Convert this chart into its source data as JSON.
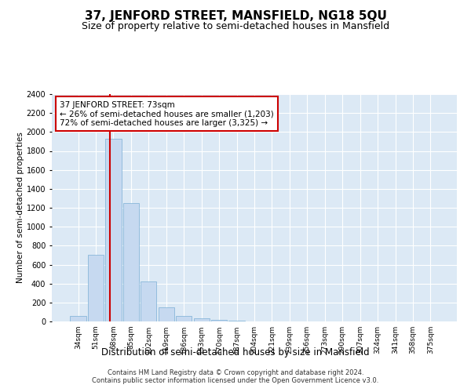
{
  "title_line1": "37, JENFORD STREET, MANSFIELD, NG18 5QU",
  "title_line2": "Size of property relative to semi-detached houses in Mansfield",
  "xlabel": "Distribution of semi-detached houses by size in Mansfield",
  "ylabel": "Number of semi-detached properties",
  "categories": [
    "34sqm",
    "51sqm",
    "68sqm",
    "85sqm",
    "102sqm",
    "119sqm",
    "136sqm",
    "153sqm",
    "170sqm",
    "187sqm",
    "204sqm",
    "221sqm",
    "239sqm",
    "256sqm",
    "273sqm",
    "290sqm",
    "307sqm",
    "324sqm",
    "341sqm",
    "358sqm",
    "375sqm"
  ],
  "values": [
    60,
    700,
    1930,
    1250,
    420,
    145,
    55,
    35,
    20,
    10,
    3,
    1,
    0,
    0,
    0,
    0,
    0,
    0,
    0,
    0,
    0
  ],
  "bar_color": "#c6d9f0",
  "bar_edge_color": "#7aafd4",
  "vline_color": "#cc0000",
  "annotation_box_text": "37 JENFORD STREET: 73sqm\n← 26% of semi-detached houses are smaller (1,203)\n72% of semi-detached houses are larger (3,325) →",
  "annotation_box_color": "#cc0000",
  "ylim": [
    0,
    2400
  ],
  "yticks": [
    0,
    200,
    400,
    600,
    800,
    1000,
    1200,
    1400,
    1600,
    1800,
    2000,
    2200,
    2400
  ],
  "background_color": "#dce9f5",
  "footer_line1": "Contains HM Land Registry data © Crown copyright and database right 2024.",
  "footer_line2": "Contains public sector information licensed under the Open Government Licence v3.0.",
  "title_fontsize": 11,
  "subtitle_fontsize": 9,
  "bar_width": 0.9
}
